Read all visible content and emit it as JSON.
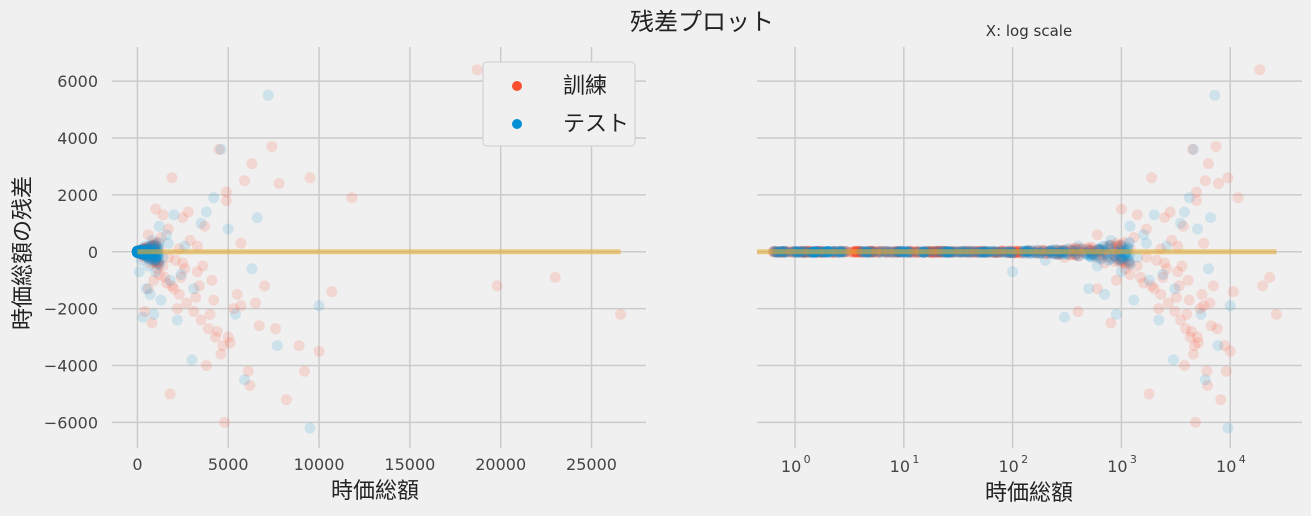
{
  "suptitle": "残差プロット",
  "chart_data": [
    {
      "type": "scatter",
      "title": "",
      "xlabel": "時価総額",
      "ylabel": "時価総額の残差",
      "xscale": "linear",
      "xlim": [
        -1400,
        28000
      ],
      "ylim": [
        -6900,
        7200
      ],
      "xticks": [
        0,
        5000,
        10000,
        15000,
        20000,
        25000
      ],
      "xtick_labels": [
        "0",
        "5000",
        "10000",
        "15000",
        "20000",
        "25000"
      ],
      "yticks": [
        -6000,
        -4000,
        -2000,
        0,
        2000,
        4000,
        6000
      ],
      "ytick_labels": [
        "−6000",
        "−4000",
        "−2000",
        "0",
        "2000",
        "4000",
        "6000"
      ],
      "grid": true,
      "legend": {
        "placement": "top-right"
      },
      "series": [
        {
          "name": "訓練",
          "color": "#fc4f30",
          "points": [
            [
              300,
              -200
            ],
            [
              500,
              150
            ],
            [
              700,
              -400
            ],
            [
              900,
              300
            ],
            [
              1100,
              -600
            ],
            [
              1300,
              500
            ],
            [
              1500,
              -900
            ],
            [
              1700,
              800
            ],
            [
              1900,
              -1200
            ],
            [
              2100,
              -300
            ],
            [
              2300,
              -1500
            ],
            [
              2500,
              1200
            ],
            [
              2700,
              -1800
            ],
            [
              2900,
              400
            ],
            [
              3100,
              -2100
            ],
            [
              3300,
              -700
            ],
            [
              3500,
              -2400
            ],
            [
              3700,
              900
            ],
            [
              3900,
              -2700
            ],
            [
              4100,
              -1000
            ],
            [
              4300,
              -3000
            ],
            [
              4500,
              3600
            ],
            [
              4700,
              -3300
            ],
            [
              4900,
              2100
            ],
            [
              5100,
              -3200
            ],
            [
              5300,
              -2000
            ],
            [
              5500,
              -1500
            ],
            [
              5700,
              300
            ],
            [
              5900,
              2500
            ],
            [
              6100,
              -4200
            ],
            [
              6300,
              3100
            ],
            [
              6500,
              -1800
            ],
            [
              6700,
              -2600
            ],
            [
              7000,
              -1200
            ],
            [
              7400,
              3700
            ],
            [
              7600,
              -2700
            ],
            [
              7800,
              2400
            ],
            [
              8200,
              -5200
            ],
            [
              8900,
              -3300
            ],
            [
              9200,
              -4200
            ],
            [
              9500,
              2600
            ],
            [
              10000,
              -3500
            ],
            [
              10700,
              -1400
            ],
            [
              11800,
              1900
            ],
            [
              18700,
              6400
            ],
            [
              19800,
              -1200
            ],
            [
              23000,
              -900
            ],
            [
              26600,
              -2200
            ],
            [
              900,
              -1000
            ],
            [
              1200,
              -800
            ],
            [
              1600,
              -1100
            ],
            [
              2000,
              -1300
            ],
            [
              2400,
              -900
            ],
            [
              2600,
              -600
            ],
            [
              3200,
              -1600
            ],
            [
              3400,
              -1200
            ],
            [
              3600,
              -500
            ],
            [
              4000,
              -2200
            ],
            [
              4200,
              -1700
            ],
            [
              4400,
              -2800
            ],
            [
              4600,
              -3600
            ],
            [
              4800,
              -6000
            ],
            [
              5000,
              -3000
            ],
            [
              3800,
              -4000
            ],
            [
              1800,
              -5000
            ],
            [
              2200,
              -2000
            ],
            [
              1000,
              1500
            ],
            [
              1400,
              1300
            ],
            [
              1900,
              2600
            ],
            [
              2800,
              1400
            ],
            [
              4900,
              1800
            ],
            [
              5700,
              -1900
            ],
            [
              6200,
              -4700
            ],
            [
              800,
              -2500
            ],
            [
              400,
              -2100
            ],
            [
              600,
              -1300
            ],
            [
              1700,
              -200
            ],
            [
              2300,
              100
            ],
            [
              2500,
              -400
            ],
            [
              3300,
              200
            ],
            [
              600,
              600
            ],
            [
              1000,
              -300
            ],
            [
              1400,
              -500
            ],
            [
              800,
              200
            ],
            [
              1200,
              100
            ]
          ]
        },
        {
          "name": "テスト",
          "color": "#008fd5",
          "points": [
            [
              200,
              -300
            ],
            [
              400,
              200
            ],
            [
              600,
              -500
            ],
            [
              800,
              400
            ],
            [
              1000,
              -700
            ],
            [
              1200,
              900
            ],
            [
              1400,
              -200
            ],
            [
              1600,
              600
            ],
            [
              1800,
              -1000
            ],
            [
              2000,
              1300
            ],
            [
              2200,
              -2400
            ],
            [
              2400,
              -800
            ],
            [
              3000,
              -3800
            ],
            [
              3500,
              1000
            ],
            [
              3800,
              1400
            ],
            [
              4200,
              1900
            ],
            [
              4600,
              3600
            ],
            [
              5000,
              800
            ],
            [
              5400,
              -2200
            ],
            [
              5900,
              -4500
            ],
            [
              6300,
              -600
            ],
            [
              6600,
              1200
            ],
            [
              7200,
              5500
            ],
            [
              7700,
              -3300
            ],
            [
              9500,
              -6200
            ],
            [
              10000,
              -1900
            ],
            [
              1700,
              300
            ],
            [
              2600,
              200
            ],
            [
              3100,
              -1300
            ],
            [
              1300,
              -1700
            ],
            [
              700,
              -1500
            ],
            [
              900,
              -2200
            ],
            [
              300,
              -2300
            ],
            [
              500,
              -1300
            ],
            [
              100,
              -700
            ]
          ]
        }
      ]
    },
    {
      "type": "scatter",
      "title": "X: log scale",
      "xlabel": "時価総額",
      "ylabel": "",
      "xscale": "log",
      "xlim_log10": [
        -0.35,
        4.66
      ],
      "ylim": [
        -6900,
        7200
      ],
      "xticks_exponents": [
        0,
        1,
        2,
        3,
        4
      ],
      "xtick_base": "10",
      "grid": true,
      "series_same_as_left": true
    }
  ],
  "reference_line": {
    "y": 0,
    "color": "#e5ae38"
  }
}
